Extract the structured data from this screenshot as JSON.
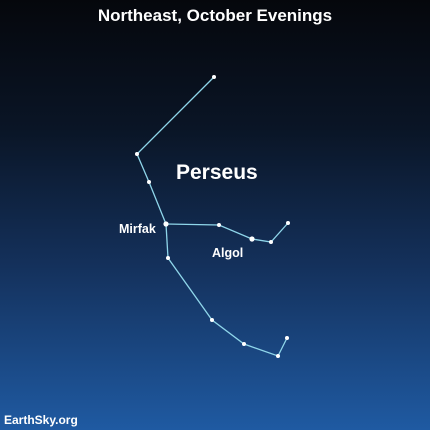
{
  "title": "Northeast, October Evenings",
  "constellation_label": "Perseus",
  "star_labels": {
    "mirfak": "Mirfak",
    "algol": "Algol"
  },
  "credit": "EarthSky.org",
  "colors": {
    "line": "#8fd6ea",
    "star": "#ffffff",
    "text": "#ffffff"
  }
}
